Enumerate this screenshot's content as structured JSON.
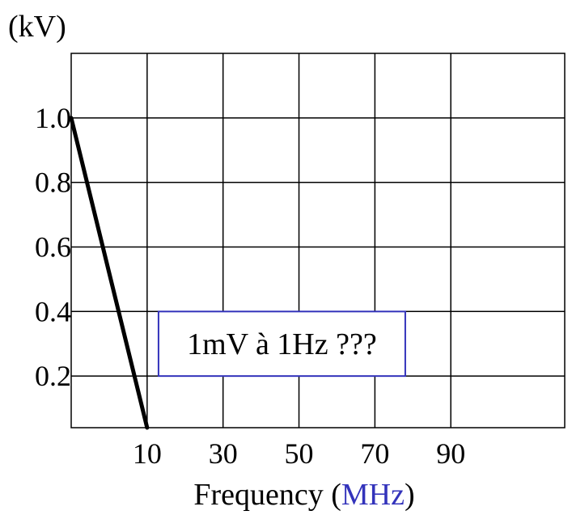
{
  "chart_data": {
    "type": "line",
    "y_unit_label": "(kV)",
    "xlabel": {
      "prefix": "Frequency (",
      "unit": "MHz",
      "suffix": ")"
    },
    "x_ticks": [
      {
        "value": 10,
        "label": "10"
      },
      {
        "value": 30,
        "label": "30"
      },
      {
        "value": 50,
        "label": "50"
      },
      {
        "value": 70,
        "label": "70"
      },
      {
        "value": 90,
        "label": "90"
      }
    ],
    "y_ticks": [
      {
        "value": 0.2,
        "label": "0.2"
      },
      {
        "value": 0.4,
        "label": "0.4"
      },
      {
        "value": 0.6,
        "label": "0.6"
      },
      {
        "value": 0.8,
        "label": "0.8"
      },
      {
        "value": 1.0,
        "label": "1.0"
      }
    ],
    "xlim": [
      -10,
      120
    ],
    "ylim": [
      0.04,
      1.2
    ],
    "grid": true,
    "series": [
      {
        "x": [
          -10,
          10
        ],
        "y": [
          1.0,
          0.04
        ]
      }
    ],
    "annotation": {
      "text": "1mV à 1Hz ???",
      "x": [
        13,
        78
      ],
      "y": [
        0.2,
        0.4
      ]
    },
    "colors": {
      "line": "#000000",
      "grid": "#000000",
      "accent": "#3333bb"
    }
  }
}
